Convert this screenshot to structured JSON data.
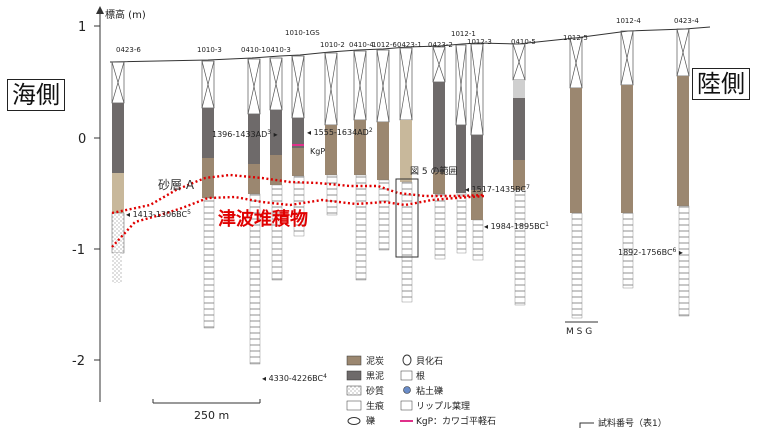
{
  "axis": {
    "label": "標高 (m)",
    "ticks": [
      "1",
      "0",
      "-1",
      "-2"
    ]
  },
  "side_labels": {
    "sea": "海側",
    "land": "陸側"
  },
  "annotations": {
    "tsunami": "津波堆積物",
    "sand_layer": "砂層 A",
    "figure5_range": "図 5 の範囲",
    "grain_scale": "M S G",
    "scale_bar": "250 m"
  },
  "cores": [
    {
      "id": "0423-6"
    },
    {
      "id": "1010-3"
    },
    {
      "id": "0410-1"
    },
    {
      "id": "0410-3"
    },
    {
      "id": "1010-1GS"
    },
    {
      "id": "1010-2"
    },
    {
      "id": "0410-4"
    },
    {
      "id": "1012-6"
    },
    {
      "id": "0423-1"
    },
    {
      "id": "0423-2"
    },
    {
      "id": "1012-1"
    },
    {
      "id": "1012-3"
    },
    {
      "id": "0410-5"
    },
    {
      "id": "1012-5"
    },
    {
      "id": "1012-4"
    },
    {
      "id": "0423-4"
    }
  ],
  "dates": [
    {
      "text": "1396-1433AD",
      "sup": "3"
    },
    {
      "text": "1555-1634AD",
      "sup": "2"
    },
    {
      "text": "KgP",
      "sup": ""
    },
    {
      "text": "1517-1435BC",
      "sup": "7"
    },
    {
      "text": "1413-1306BC",
      "sup": "5"
    },
    {
      "text": "1984-1895BC",
      "sup": "1"
    },
    {
      "text": "1892-1756BC",
      "sup": "6"
    },
    {
      "text": "4330-4226BC",
      "sup": "4"
    }
  ],
  "legend": [
    {
      "label": "泥炭",
      "icon": "peat-swatch"
    },
    {
      "label": "貝化石",
      "icon": "shell-fossil-icon"
    },
    {
      "label": "黒泥",
      "icon": "muck-swatch"
    },
    {
      "label": "根",
      "icon": "root-icon"
    },
    {
      "label": "砂質",
      "icon": "sandy-swatch"
    },
    {
      "label": "粘土礫",
      "icon": "clay-pebble-icon"
    },
    {
      "label": "生痕",
      "icon": "trace-fossil-icon"
    },
    {
      "label": "リップル葉理",
      "icon": "ripple-lamination-icon"
    },
    {
      "label": "礫",
      "icon": "gravel-icon"
    },
    {
      "label": "KgP：カワゴ平軽石",
      "icon": "kgp-line-icon"
    }
  ],
  "sample_legend": "試料番号（表1）",
  "colors": {
    "peat": "#9b8770",
    "muck": "#6e6a6a",
    "sand": "#c8b89b",
    "tsunami": "#e00000",
    "kgp": "#e0308a"
  }
}
